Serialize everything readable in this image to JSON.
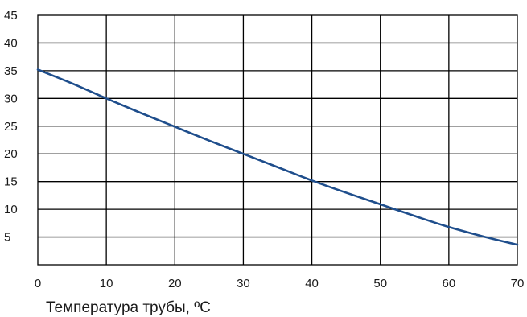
{
  "chart_data": {
    "type": "line",
    "title": "",
    "xlabel": "Температура трубы, ºC",
    "ylabel": "",
    "xlim": [
      0,
      70
    ],
    "ylim": [
      0,
      45
    ],
    "grid": true,
    "x_ticks": [
      0,
      10,
      20,
      30,
      40,
      50,
      60,
      70
    ],
    "y_ticks": [
      5,
      10,
      15,
      20,
      25,
      30,
      35,
      40,
      45
    ],
    "series": [
      {
        "color": "#1f4e8c",
        "x": [
          0,
          5,
          10,
          15,
          20,
          25,
          30,
          35,
          40,
          45,
          50,
          55,
          60,
          65,
          70
        ],
        "y": [
          35.2,
          32.7,
          30.0,
          27.4,
          24.9,
          22.4,
          20.0,
          17.6,
          15.2,
          13.0,
          10.9,
          8.8,
          6.8,
          5.1,
          3.6
        ]
      }
    ]
  }
}
